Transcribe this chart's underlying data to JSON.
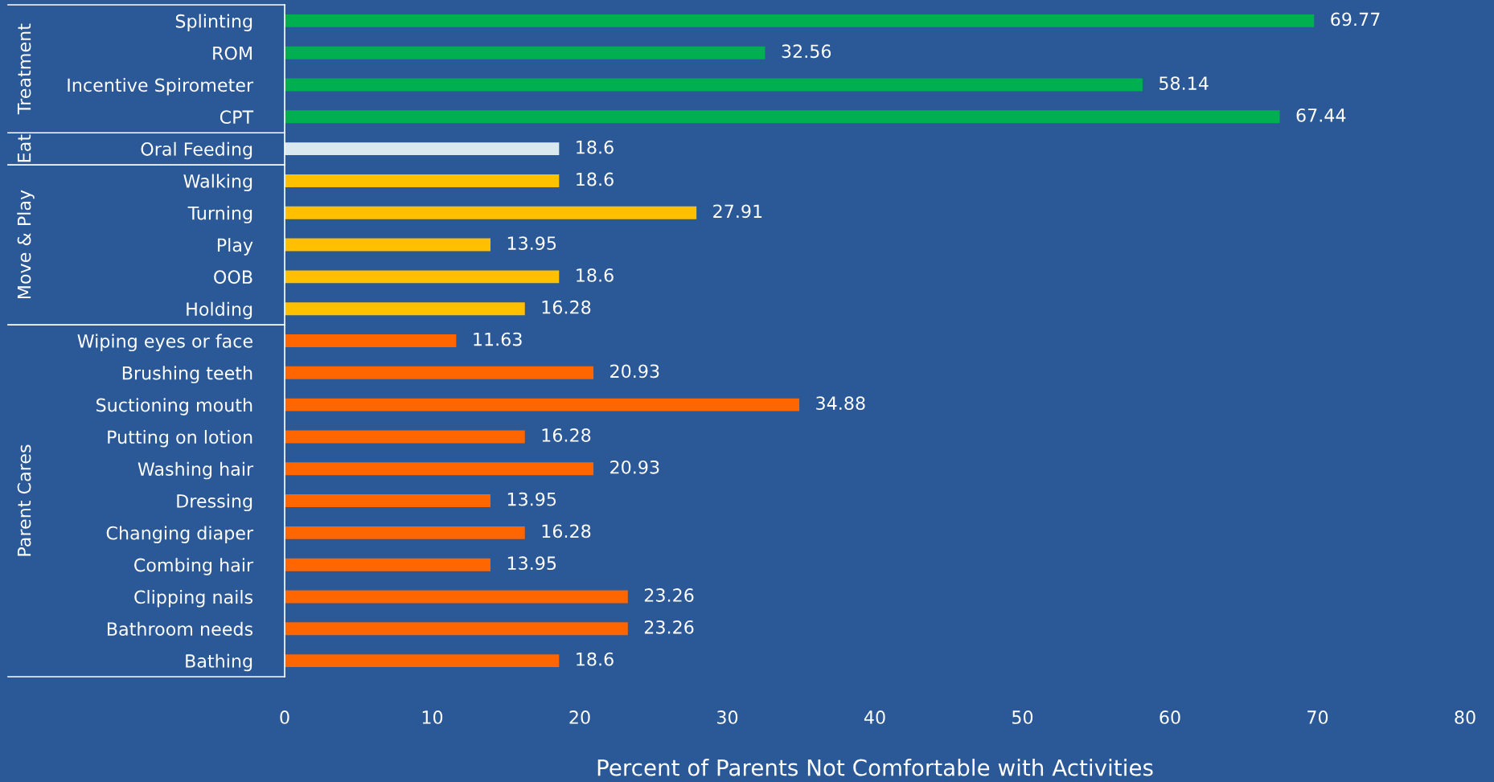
{
  "chart_data": {
    "type": "bar",
    "orientation": "horizontal",
    "xlabel": "Percent of Parents Not Comfortable with Activities",
    "categories": [
      "Splinting",
      "ROM",
      "Incentive Spirometer",
      "CPT",
      "Oral Feeding",
      "Walking",
      "Turning",
      "Play",
      "OOB",
      "Holding",
      "Wiping eyes or face",
      "Brushing teeth",
      "Suctioning mouth",
      "Putting on lotion",
      "Washing hair",
      "Dressing",
      "Changing diaper",
      "Combing hair",
      "Clipping nails",
      "Bathroom needs",
      "Bathing"
    ],
    "values": [
      69.77,
      32.56,
      58.14,
      67.44,
      18.6,
      18.6,
      27.91,
      13.95,
      18.6,
      16.28,
      11.63,
      20.93,
      34.88,
      16.28,
      20.93,
      13.95,
      16.28,
      13.95,
      23.26,
      23.26,
      18.6
    ],
    "colors": [
      "#00b050",
      "#00b050",
      "#00b050",
      "#00b050",
      "#dae8f0",
      "#ffc000",
      "#ffc000",
      "#ffc000",
      "#ffc000",
      "#ffc000",
      "#ff6600",
      "#ff6600",
      "#ff6600",
      "#ff6600",
      "#ff6600",
      "#ff6600",
      "#ff6600",
      "#ff6600",
      "#ff6600",
      "#ff6600",
      "#ff6600"
    ],
    "annotations": [
      "Treatment",
      "Eat",
      "Move & Play",
      "Parent Cares"
    ],
    "xlim": [
      0,
      80
    ],
    "xticks": [
      0,
      10,
      20,
      30,
      40,
      50,
      60,
      70,
      80
    ],
    "data_labels": true,
    "grid": false
  }
}
